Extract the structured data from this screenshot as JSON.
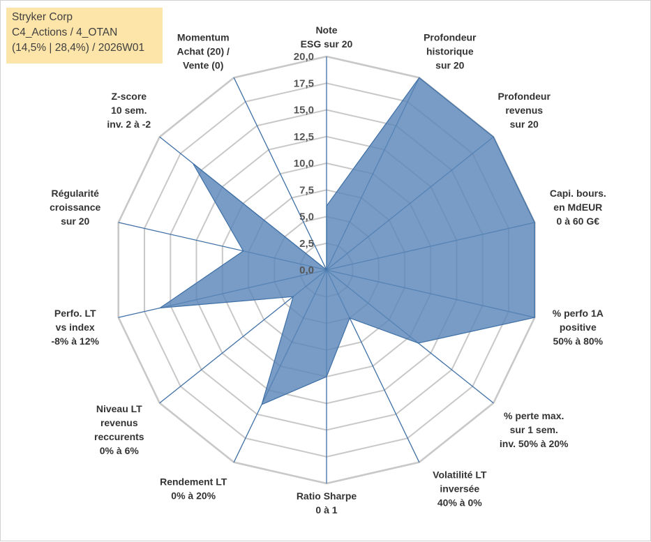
{
  "info": {
    "line1": "Stryker Corp",
    "line2": "C4_Actions / 4_OTAN",
    "line3": "(14,5% | 28,4%) / 2026W01"
  },
  "colors": {
    "fill": "#5a86b8",
    "stroke": "#3e6fa6",
    "spoke": "#3e6fa6",
    "grid": "#c8c8c8",
    "info_bg": "#fde4a8"
  },
  "chart_data": {
    "type": "radar",
    "range": [
      0,
      20
    ],
    "grid": true,
    "ticks": [
      "0,0",
      "2,5",
      "5,0",
      "7,5",
      "10,0",
      "12,5",
      "15,0",
      "17,5",
      "20,0"
    ],
    "axes": [
      {
        "label": [
          "Note",
          "ESG sur 20"
        ],
        "value": 6
      },
      {
        "label": [
          "Profondeur",
          "historique",
          "sur 20"
        ],
        "value": 20
      },
      {
        "label": [
          "Profondeur",
          "revenus",
          "sur 20"
        ],
        "value": 20
      },
      {
        "label": [
          "Capi. bours.",
          "en MdEUR",
          "0 à 60 G€"
        ],
        "value": 20
      },
      {
        "label": [
          "% perfo 1A",
          "positive",
          "50% à 80%"
        ],
        "value": 20
      },
      {
        "label": [
          "% perte max.",
          "sur 1 sem.",
          "inv. 50% à 20%"
        ],
        "value": 11
      },
      {
        "label": [
          "Volatilité LT",
          "inversée",
          "40% à 0%"
        ],
        "value": 5
      },
      {
        "label": [
          "Ratio Sharpe",
          "0 à 1"
        ],
        "value": 10
      },
      {
        "label": [
          "Rendement LT",
          "0% à 20%"
        ],
        "value": 14
      },
      {
        "label": [
          "Niveau LT",
          "revenus",
          "reccurents",
          "0% à 6%"
        ],
        "value": 4
      },
      {
        "label": [
          "Perfo. LT",
          "vs index",
          "-8% à 12%"
        ],
        "value": 16
      },
      {
        "label": [
          "Régularité",
          "croissance",
          "sur 20"
        ],
        "value": 8
      },
      {
        "label": [
          "Z-score",
          "10 sem.",
          "inv. 2 à -2"
        ],
        "value": 16
      },
      {
        "label": [
          "Momentum",
          "Achat (20) /",
          "Vente (0)"
        ],
        "value": 0
      }
    ]
  }
}
